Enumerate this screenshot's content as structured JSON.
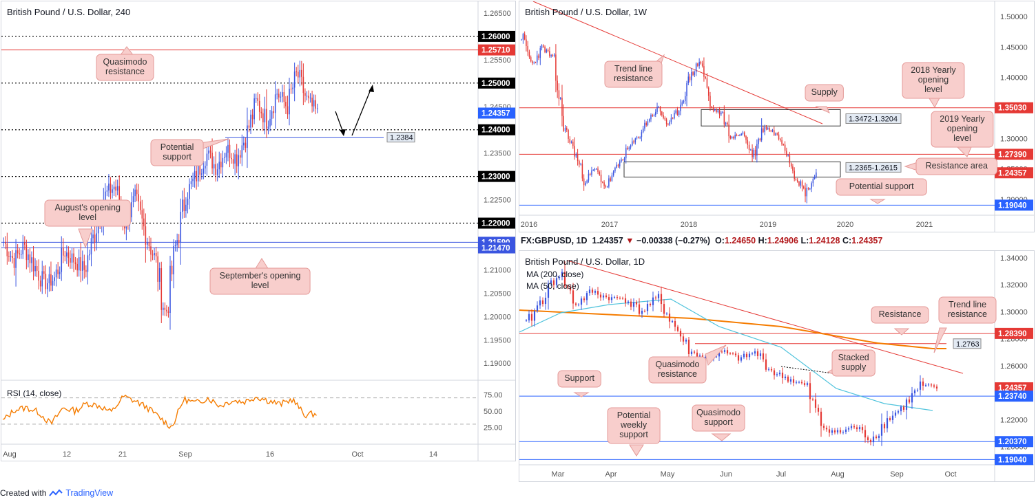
{
  "panels": {
    "h4": {
      "title": "British Pound / U.S. Dollar, 240",
      "ymin": 1.1865,
      "ymax": 1.2675,
      "yticks": [
        "1.26500",
        "1.26000",
        "1.25500",
        "1.25000",
        "1.24500",
        "1.24000",
        "1.23500",
        "1.23000",
        "1.22500",
        "1.22000",
        "1.21500",
        "1.21000",
        "1.20500",
        "1.20000",
        "1.19500",
        "1.19000"
      ],
      "xticks": [
        "Aug",
        "12",
        "21",
        "Sep",
        "16",
        "Oct",
        "14"
      ],
      "levels": [
        {
          "value": 1.26,
          "label": "1.26000",
          "style": "dotted",
          "color": "#000000",
          "tag_bg": "#000000"
        },
        {
          "value": 1.2571,
          "label": "1.25710",
          "style": "solid",
          "color": "#e53935",
          "tag_bg": "#e53935"
        },
        {
          "value": 1.25,
          "label": "1.25000",
          "style": "dotted",
          "color": "#000000",
          "tag_bg": "#000000"
        },
        {
          "value": 1.24357,
          "label": "1.24357",
          "style": "none",
          "color": "#2962ff",
          "tag_bg": "#2962ff"
        },
        {
          "value": 1.24,
          "label": "1.24000",
          "style": "dotted",
          "color": "#000000",
          "tag_bg": "#000000"
        },
        {
          "value": 1.2384,
          "label": "1.2384",
          "style": "solid",
          "color": "#3a55e0",
          "tag_bg": "box"
        },
        {
          "value": 1.23,
          "label": "1.23000",
          "style": "dotted",
          "color": "#000000",
          "tag_bg": "#000000"
        },
        {
          "value": 1.22,
          "label": "1.22000",
          "style": "dotted",
          "color": "#000000",
          "tag_bg": "#000000"
        },
        {
          "value": 1.2159,
          "label": "1.21590",
          "style": "solid",
          "color": "#3a55e0",
          "tag_bg": "#3a55e0"
        },
        {
          "value": 1.2147,
          "label": "1.21470",
          "style": "solid",
          "color": "#3a55e0",
          "tag_bg": "#3a55e0"
        }
      ],
      "callouts": [
        {
          "text": [
            "Quasimodo",
            "resistance"
          ]
        },
        {
          "text": [
            "Potential",
            "support"
          ]
        },
        {
          "text": [
            "August's opening",
            "level"
          ]
        },
        {
          "text": [
            "September's opening",
            "level"
          ]
        }
      ],
      "rsi": {
        "label": "RSI (14, close)",
        "ticks": [
          "75.00",
          "50.00",
          "25.00"
        ]
      }
    },
    "w1": {
      "title": "British Pound / U.S. Dollar, 1W",
      "ymin": 1.175,
      "ymax": 1.525,
      "yticks": [
        "1.50000",
        "1.45000",
        "1.40000",
        "1.35000",
        "1.30000",
        "1.25000",
        "1.20000"
      ],
      "xticks": [
        "2016",
        "2017",
        "2018",
        "2019",
        "2020",
        "2021"
      ],
      "levels": [
        {
          "value": 1.3503,
          "label": "1.35030",
          "color": "#e53935"
        },
        {
          "value": 1.2739,
          "label": "1.27390",
          "color": "#e53935"
        },
        {
          "value": 1.24357,
          "label": "1.24357",
          "color": "#e53935"
        },
        {
          "value": 1.1904,
          "label": "1.19040",
          "color": "#2962ff"
        }
      ],
      "zones": [
        {
          "label": "1.3472-1.3204",
          "top": 1.3472,
          "bottom": 1.3204
        },
        {
          "label": "1.2365-1.2615",
          "top": 1.2615,
          "bottom": 1.2365
        }
      ],
      "callouts": [
        {
          "text": [
            "Trend line",
            "resistance"
          ]
        },
        {
          "text": [
            "2018 Yearly",
            "opening",
            "level"
          ]
        },
        {
          "text": [
            "Supply"
          ]
        },
        {
          "text": [
            "2019 Yearly",
            "opening",
            "level"
          ]
        },
        {
          "text": [
            "Resistance area"
          ]
        },
        {
          "text": [
            "Potential support"
          ]
        }
      ]
    },
    "d1": {
      "title": "British Pound / U.S. Dollar, 1D",
      "ma200": "MA (200, close)",
      "ma50": "MA (50, close)",
      "ymin": 1.187,
      "ymax": 1.345,
      "yticks": [
        "1.34000",
        "1.32000",
        "1.30000",
        "1.28000",
        "1.26000",
        "1.24000",
        "1.22000",
        "1.20000"
      ],
      "xticks": [
        "Mar",
        "Apr",
        "May",
        "Jun",
        "Jul",
        "Aug",
        "Sep",
        "Oct"
      ],
      "levels": [
        {
          "value": 1.2839,
          "label": "1.28390",
          "color": "#e53935"
        },
        {
          "value": 1.2763,
          "label": "1.2763",
          "color": "#e53935"
        },
        {
          "value": 1.24357,
          "label": "1.24357",
          "color": "#e53935"
        },
        {
          "value": 1.2374,
          "label": "1.23740",
          "color": "#2962ff"
        },
        {
          "value": 1.2037,
          "label": "1.20370",
          "color": "#2962ff"
        },
        {
          "value": 1.1904,
          "label": "1.19040",
          "color": "#2962ff"
        }
      ],
      "callouts": [
        {
          "text": [
            "Resistance"
          ]
        },
        {
          "text": [
            "Trend line",
            "resistance"
          ]
        },
        {
          "text": [
            "Quasimodo",
            "resistance"
          ]
        },
        {
          "text": [
            "Stacked",
            "supply"
          ]
        },
        {
          "text": [
            "Support"
          ]
        },
        {
          "text": [
            "Potential",
            "weekly",
            "support"
          ]
        },
        {
          "text": [
            "Quasimodo",
            "support"
          ]
        }
      ]
    }
  },
  "ticker": {
    "symbol": "FX:GBPUSD, 1D",
    "last": "1.24357",
    "arrow": "▼",
    "change": "−0.00338 (−0.27%)",
    "o_label": "O:",
    "o": "1.24650",
    "h_label": "H:",
    "h": "1.24906",
    "l_label": "L:",
    "l": "1.24128",
    "c_label": "C:",
    "c": "1.24357"
  },
  "footer": {
    "created": "Created with",
    "brand": "TradingView"
  },
  "colors": {
    "up": "#3a55e0",
    "down": "#e53935",
    "callout_bg": "#f8cecc",
    "callout_border": "#e49a98",
    "ma200": "#f57c00",
    "ma50": "#4fc3dc",
    "rsi": "#f57c00"
  },
  "chart_data": [
    {
      "type": "line",
      "title": "British Pound / U.S. Dollar, 240",
      "xlabel": "",
      "ylabel": "",
      "x": [
        "Aug",
        "12",
        "21",
        "Sep",
        "16"
      ],
      "series": [
        {
          "values": [
            1.216,
            1.207,
            1.226,
            1.2,
            1.244
          ]
        }
      ],
      "ylim": [
        1.1865,
        1.2675
      ]
    },
    {
      "type": "line",
      "title": "British Pound / U.S. Dollar, 1W",
      "x": [
        "2016",
        "2017",
        "2018",
        "2019",
        "2020"
      ],
      "series": [
        {
          "values": [
            1.47,
            1.23,
            1.43,
            1.27,
            1.2436
          ]
        }
      ],
      "ylim": [
        1.175,
        1.525
      ]
    },
    {
      "type": "line",
      "title": "British Pound / U.S. Dollar, 1D",
      "x": [
        "Mar",
        "Apr",
        "May",
        "Jun",
        "Jul",
        "Aug",
        "Sep"
      ],
      "series": [
        {
          "values": [
            1.315,
            1.305,
            1.315,
            1.27,
            1.245,
            1.21,
            1.2436
          ]
        }
      ],
      "ylim": [
        1.187,
        1.345
      ]
    }
  ]
}
